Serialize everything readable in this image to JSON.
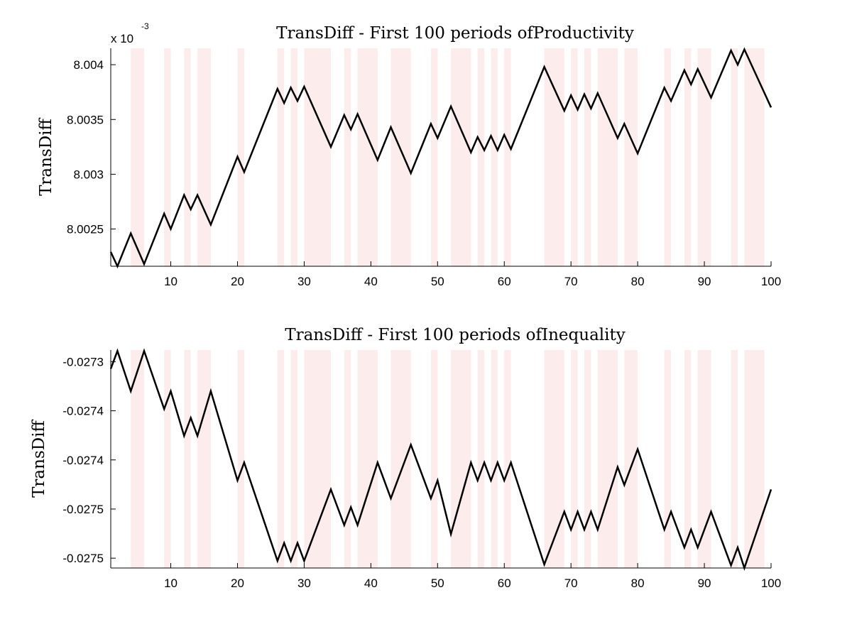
{
  "chart_data": [
    {
      "type": "line",
      "title": "TransDiff - First 100 periods ofProductivity",
      "ylabel": "TransDiff",
      "xlabel": "",
      "y_exponent_label": "x 10",
      "y_exponent_power": "-3",
      "xlim": [
        1,
        100
      ],
      "ylim": [
        8.00216,
        8.00415
      ],
      "xticks": [
        10,
        20,
        30,
        40,
        50,
        60,
        70,
        80,
        90,
        100
      ],
      "xtick_labels": [
        "10",
        "20",
        "30",
        "40",
        "50",
        "60",
        "70",
        "80",
        "90",
        "100"
      ],
      "yticks": [
        8.0025,
        8.003,
        8.0035,
        8.004
      ],
      "ytick_labels": [
        "8.0025",
        "8.003",
        "8.0035",
        "8.004"
      ],
      "shaded_periods": [
        [
          4,
          6
        ],
        [
          9,
          10
        ],
        [
          12,
          13
        ],
        [
          14,
          16
        ],
        [
          20,
          21
        ],
        [
          26,
          27
        ],
        [
          28,
          29
        ],
        [
          30,
          34
        ],
        [
          36,
          37
        ],
        [
          38,
          41
        ],
        [
          43,
          46
        ],
        [
          49,
          50
        ],
        [
          52,
          55
        ],
        [
          56,
          57
        ],
        [
          58,
          59
        ],
        [
          60,
          61
        ],
        [
          66,
          69
        ],
        [
          70,
          71
        ],
        [
          72,
          73
        ],
        [
          74,
          77
        ],
        [
          78,
          80
        ],
        [
          84,
          85
        ],
        [
          87,
          88
        ],
        [
          89,
          91
        ],
        [
          94,
          95
        ],
        [
          96,
          99
        ]
      ],
      "series": [
        {
          "x": [
            1,
            2,
            4,
            6,
            9,
            10,
            12,
            13,
            14,
            16,
            20,
            21,
            26,
            27,
            28,
            29,
            30,
            34,
            36,
            37,
            38,
            41,
            43,
            46,
            49,
            50,
            52,
            55,
            56,
            57,
            58,
            59,
            60,
            61,
            66,
            69,
            70,
            71,
            72,
            73,
            74,
            77,
            78,
            80,
            84,
            85,
            87,
            88,
            89,
            91,
            94,
            95,
            96,
            100
          ],
          "values": [
            8.00229,
            8.00216,
            8.00246,
            8.00218,
            8.00264,
            8.0025,
            8.00281,
            8.00268,
            8.00281,
            8.00254,
            8.00316,
            8.00302,
            8.00378,
            8.00365,
            8.00379,
            8.00367,
            8.0038,
            8.00325,
            8.00354,
            8.00341,
            8.00355,
            8.00313,
            8.00343,
            8.00301,
            8.00346,
            8.00333,
            8.00362,
            8.0032,
            8.00334,
            8.00322,
            8.00335,
            8.00322,
            8.00336,
            8.00323,
            8.00398,
            8.00358,
            8.00372,
            8.00359,
            8.00373,
            8.0036,
            8.00374,
            8.00333,
            8.00346,
            8.00319,
            8.00379,
            8.00367,
            8.00395,
            8.00382,
            8.00396,
            8.0037,
            8.00413,
            8.004,
            8.00414,
            8.00361
          ]
        }
      ]
    },
    {
      "type": "line",
      "title": "TransDiff - First 100 periods ofInequality",
      "ylabel": "TransDiff",
      "xlabel": "",
      "xlim": [
        1,
        100
      ],
      "ylim": [
        -0.027516,
        -0.027272
      ],
      "xticks": [
        10,
        20,
        30,
        40,
        50,
        60,
        70,
        80,
        90,
        100
      ],
      "xtick_labels": [
        "10",
        "20",
        "30",
        "40",
        "50",
        "60",
        "70",
        "80",
        "90",
        "100"
      ],
      "yticks": [
        -0.027285,
        -0.02734,
        -0.027395,
        -0.02745,
        -0.027505
      ],
      "ytick_labels": [
        "-0.0273",
        "-0.0274",
        "-0.0274",
        "-0.0275",
        "-0.0275"
      ],
      "shaded_periods": [
        [
          4,
          6
        ],
        [
          9,
          10
        ],
        [
          12,
          13
        ],
        [
          14,
          16
        ],
        [
          20,
          21
        ],
        [
          26,
          27
        ],
        [
          28,
          29
        ],
        [
          30,
          34
        ],
        [
          36,
          37
        ],
        [
          38,
          41
        ],
        [
          43,
          46
        ],
        [
          49,
          50
        ],
        [
          52,
          55
        ],
        [
          56,
          57
        ],
        [
          58,
          59
        ],
        [
          60,
          61
        ],
        [
          66,
          69
        ],
        [
          70,
          71
        ],
        [
          72,
          73
        ],
        [
          74,
          77
        ],
        [
          78,
          80
        ],
        [
          84,
          85
        ],
        [
          87,
          88
        ],
        [
          89,
          91
        ],
        [
          94,
          95
        ],
        [
          96,
          99
        ]
      ],
      "series": [
        {
          "x": [
            1,
            2,
            4,
            6,
            9,
            10,
            12,
            13,
            14,
            16,
            20,
            21,
            26,
            27,
            28,
            29,
            30,
            34,
            36,
            37,
            38,
            41,
            43,
            46,
            49,
            50,
            52,
            55,
            56,
            57,
            58,
            59,
            60,
            61,
            66,
            69,
            70,
            71,
            72,
            73,
            74,
            77,
            78,
            80,
            84,
            85,
            87,
            88,
            89,
            91,
            94,
            95,
            96,
            100
          ],
          "values": [
            -0.027293,
            -0.027273,
            -0.027318,
            -0.027273,
            -0.027338,
            -0.027318,
            -0.027368,
            -0.027348,
            -0.027368,
            -0.027318,
            -0.027418,
            -0.027398,
            -0.027508,
            -0.027488,
            -0.027508,
            -0.027488,
            -0.027508,
            -0.027428,
            -0.027468,
            -0.027448,
            -0.027468,
            -0.027398,
            -0.027438,
            -0.027378,
            -0.027438,
            -0.027418,
            -0.027478,
            -0.027398,
            -0.027418,
            -0.027398,
            -0.027418,
            -0.027398,
            -0.027418,
            -0.027398,
            -0.027512,
            -0.027453,
            -0.027473,
            -0.027453,
            -0.027473,
            -0.027453,
            -0.027473,
            -0.027403,
            -0.027423,
            -0.027383,
            -0.027473,
            -0.027453,
            -0.027493,
            -0.027473,
            -0.027493,
            -0.027453,
            -0.027513,
            -0.027493,
            -0.027516,
            -0.027428
          ]
        }
      ]
    }
  ]
}
